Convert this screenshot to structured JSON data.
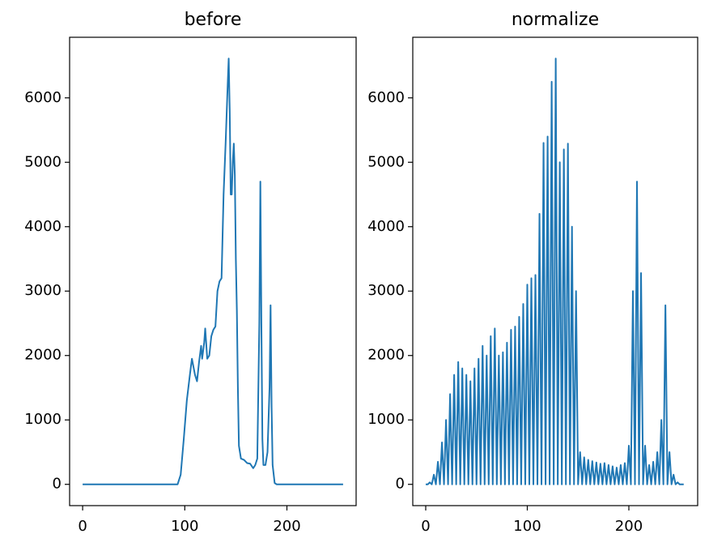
{
  "chart_data": [
    {
      "type": "line",
      "title": "before",
      "color": "#1f77b4",
      "x": [
        0,
        93,
        96,
        99,
        102,
        105,
        107,
        110,
        112,
        114,
        116,
        117,
        119,
        120,
        122,
        124,
        126,
        128,
        130,
        132,
        134,
        136,
        138,
        140,
        142,
        143,
        144,
        145,
        146,
        147,
        148,
        149,
        150,
        151,
        152,
        153,
        155,
        158,
        161,
        164,
        167,
        169,
        171,
        173,
        174,
        175,
        176,
        177,
        179,
        181,
        183,
        184,
        185,
        186,
        188,
        190,
        255
      ],
      "values": [
        0,
        0,
        150,
        700,
        1300,
        1700,
        1950,
        1700,
        1600,
        1900,
        2150,
        1950,
        2200,
        2420,
        1950,
        2000,
        2300,
        2400,
        2450,
        3000,
        3150,
        3200,
        4500,
        5300,
        6200,
        6610,
        5800,
        4500,
        4500,
        5000,
        5290,
        4800,
        3500,
        2700,
        1500,
        600,
        400,
        380,
        330,
        320,
        250,
        300,
        400,
        2500,
        4700,
        2500,
        700,
        300,
        300,
        500,
        1500,
        2780,
        1200,
        300,
        20,
        0,
        0
      ],
      "xlim": [
        -12.75,
        267.75
      ],
      "ylim": [
        -330.5,
        6940.5
      ],
      "xticks": [
        0,
        100,
        200
      ],
      "yticks": [
        0,
        1000,
        2000,
        3000,
        4000,
        5000,
        6000
      ]
    },
    {
      "type": "line",
      "title": "normalize",
      "color": "#1f77b4",
      "x": [
        0,
        2,
        4,
        6,
        8,
        10,
        12,
        14,
        16,
        18,
        20,
        22,
        24,
        26,
        28,
        30,
        32,
        34,
        36,
        38,
        40,
        42,
        44,
        46,
        48,
        50,
        52,
        54,
        56,
        58,
        60,
        62,
        64,
        66,
        68,
        70,
        72,
        74,
        76,
        78,
        80,
        82,
        84,
        86,
        88,
        90,
        92,
        94,
        96,
        98,
        100,
        102,
        104,
        106,
        108,
        110,
        112,
        114,
        116,
        118,
        120,
        122,
        124,
        126,
        128,
        130,
        132,
        134,
        136,
        138,
        140,
        142,
        144,
        146,
        148,
        150,
        152,
        154,
        156,
        158,
        160,
        162,
        164,
        166,
        168,
        170,
        172,
        174,
        176,
        178,
        180,
        182,
        184,
        186,
        188,
        190,
        192,
        194,
        196,
        198,
        200,
        202,
        204,
        206,
        208,
        210,
        212,
        214,
        216,
        218,
        220,
        222,
        224,
        226,
        228,
        230,
        232,
        234,
        236,
        238,
        240,
        242,
        244,
        246,
        248,
        250,
        252,
        254
      ],
      "values": [
        0,
        0,
        30,
        0,
        150,
        0,
        350,
        0,
        650,
        0,
        1000,
        0,
        1400,
        0,
        1700,
        0,
        1900,
        0,
        1800,
        0,
        1700,
        0,
        1600,
        0,
        1800,
        0,
        1950,
        0,
        2150,
        0,
        2000,
        0,
        2300,
        0,
        2420,
        0,
        2000,
        0,
        2050,
        0,
        2200,
        0,
        2400,
        0,
        2450,
        0,
        2600,
        0,
        2800,
        0,
        3100,
        0,
        3200,
        0,
        3250,
        0,
        4200,
        0,
        5300,
        0,
        5400,
        0,
        6250,
        0,
        6610,
        0,
        5000,
        0,
        5200,
        0,
        5290,
        0,
        4000,
        0,
        3000,
        0,
        500,
        0,
        420,
        0,
        380,
        0,
        360,
        0,
        340,
        0,
        320,
        0,
        330,
        0,
        300,
        0,
        280,
        0,
        260,
        0,
        300,
        0,
        330,
        0,
        600,
        0,
        3000,
        0,
        4700,
        0,
        3280,
        0,
        600,
        0,
        300,
        0,
        350,
        0,
        500,
        0,
        1000,
        0,
        2780,
        0,
        500,
        0,
        150,
        0,
        30,
        0,
        0,
        0
      ],
      "xlim": [
        -12.75,
        267.75
      ],
      "ylim": [
        -330.5,
        6940.5
      ],
      "xticks": [
        0,
        100,
        200
      ],
      "yticks": [
        0,
        1000,
        2000,
        3000,
        4000,
        5000,
        6000
      ]
    }
  ]
}
